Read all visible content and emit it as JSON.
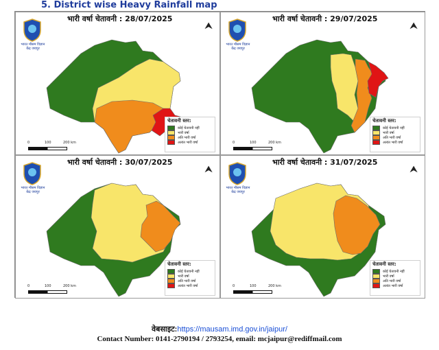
{
  "heading": "5.  District  wise  Heavy Rainfall map",
  "colors": {
    "no_warning": "#2f7a1f",
    "heavy": "#f8e56a",
    "very_heavy": "#f08c1c",
    "extremely_heavy": "#e01515"
  },
  "legend": {
    "title": "चेतावनी स्तर:",
    "items": [
      "कोई चेतावनी नहीं",
      "भारी वर्षा",
      "अति भारी वर्षा",
      "अत्यंत भारी वर्षा"
    ]
  },
  "logo_text": "भारत मौसम विज्ञान केंद्र जयपुर",
  "north_symbol": "north-arrow-icon",
  "scale_labels": [
    "0",
    "100",
    "200 km"
  ],
  "panels": [
    {
      "title": "भारी वर्षा चेतावनी : 28/07/2025",
      "warning_level": "extremely_heavy"
    },
    {
      "title": "भारी वर्षा चेतावनी :  29/07/2025",
      "warning_level": "extremely_heavy"
    },
    {
      "title": "भारी वर्षा चेतावनी : 30/07/2025",
      "warning_level": "very_heavy"
    },
    {
      "title": "भारी वर्षा चेतावनी : 31/07/2025",
      "warning_level": "very_heavy"
    }
  ],
  "footer": {
    "website_label": "वेबसाइट:",
    "website_url": "https://mausam.imd.gov.in/jaipur/",
    "contact": "Contact Number: 0141-2790194 / 2793254, email: mcjaipur@rediffmail.com"
  }
}
